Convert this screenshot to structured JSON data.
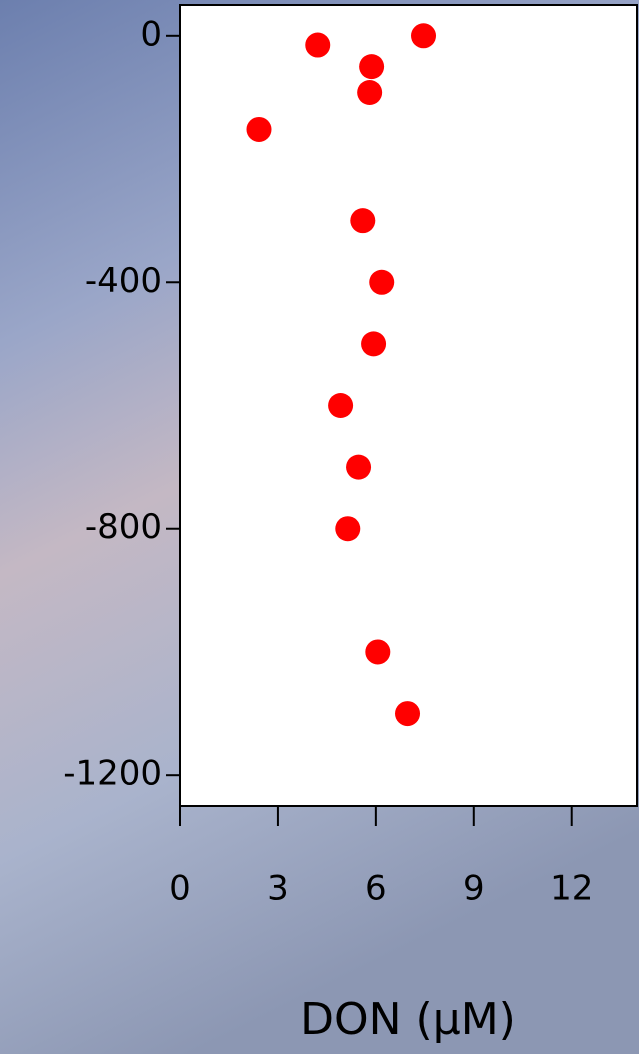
{
  "chart_data": {
    "type": "scatter",
    "x_label": "DON (μM)",
    "x": [
      7.46,
      4.22,
      5.87,
      5.81,
      2.42,
      5.6,
      6.18,
      5.93,
      4.92,
      5.47,
      5.14,
      6.06,
      6.97
    ],
    "values": [
      0,
      -15,
      -50,
      -92,
      -152,
      -300,
      -400,
      -500,
      -600,
      -700,
      -800,
      -1000,
      -1100
    ],
    "color": "#ff0000",
    "xlim": [
      0,
      14
    ],
    "xticks": [
      0,
      3,
      6,
      9,
      12
    ],
    "ylim": [
      -1250,
      50
    ],
    "yticks": [
      0,
      -400,
      -800,
      -1200
    ]
  }
}
